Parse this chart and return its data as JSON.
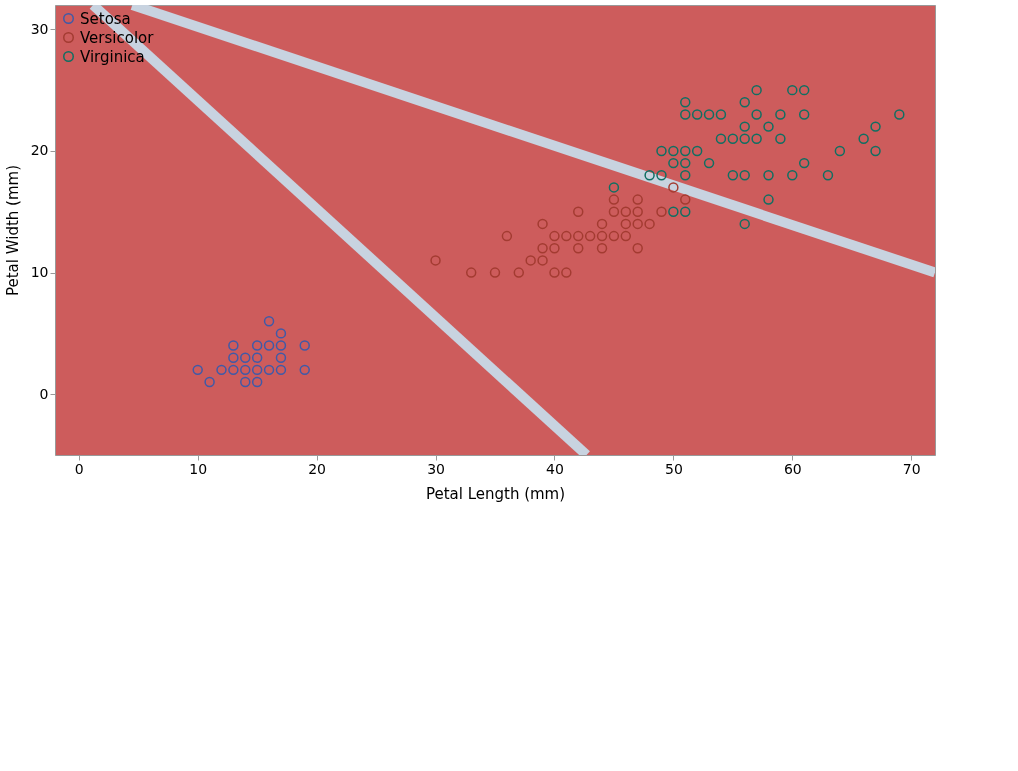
{
  "chart_data": {
    "type": "scatter",
    "xlabel": "Petal Length (mm)",
    "ylabel": "Petal Width (mm)",
    "xlim": [
      -2,
      72
    ],
    "ylim": [
      -5,
      32
    ],
    "xticks": [
      0,
      10,
      20,
      30,
      40,
      50,
      60,
      70
    ],
    "yticks": [
      0,
      10,
      20,
      30
    ],
    "grid": false,
    "legend": "top left",
    "marker": "circle",
    "series": [
      {
        "name": "Setosa",
        "color": "#3f5aa8",
        "x": [
          10,
          11,
          12,
          13,
          13,
          13,
          14,
          14,
          14,
          15,
          15,
          15,
          15,
          16,
          16,
          16,
          17,
          17,
          17,
          17,
          19,
          19
        ],
        "values": [
          2,
          1,
          2,
          2,
          3,
          4,
          1,
          2,
          3,
          1,
          2,
          3,
          4,
          2,
          4,
          6,
          2,
          3,
          4,
          5,
          2,
          4
        ]
      },
      {
        "name": "Versicolor",
        "color": "#a33b31",
        "x": [
          30,
          33,
          35,
          36,
          37,
          38,
          39,
          39,
          39,
          40,
          40,
          40,
          41,
          41,
          42,
          42,
          42,
          43,
          44,
          44,
          44,
          45,
          45,
          45,
          46,
          46,
          46,
          47,
          47,
          47,
          47,
          48,
          49,
          50,
          51
        ],
        "values": [
          11,
          10,
          10,
          13,
          10,
          11,
          11,
          12,
          14,
          10,
          12,
          13,
          10,
          13,
          12,
          13,
          15,
          13,
          12,
          13,
          14,
          13,
          15,
          16,
          13,
          14,
          15,
          12,
          14,
          15,
          16,
          14,
          15,
          17,
          16
        ]
      },
      {
        "name": "Virginica",
        "color": "#0f6f62",
        "x": [
          45,
          48,
          49,
          49,
          50,
          50,
          50,
          51,
          51,
          51,
          51,
          51,
          51,
          52,
          52,
          53,
          53,
          54,
          54,
          55,
          55,
          56,
          56,
          56,
          56,
          56,
          57,
          57,
          57,
          58,
          58,
          58,
          59,
          59,
          60,
          60,
          61,
          61,
          61,
          63,
          64,
          66,
          67,
          67,
          69
        ],
        "values": [
          17,
          18,
          18,
          20,
          15,
          19,
          20,
          15,
          18,
          19,
          20,
          23,
          24,
          20,
          23,
          19,
          23,
          21,
          23,
          18,
          21,
          14,
          18,
          21,
          22,
          24,
          21,
          23,
          25,
          16,
          18,
          22,
          21,
          23,
          18,
          25,
          19,
          23,
          25,
          18,
          20,
          21,
          20,
          22,
          23
        ]
      },
      {
        "type": "line",
        "marker": "none",
        "color": "#c8d3e0",
        "x": [
          1.2,
          42.7
        ],
        "values": [
          32,
          -5
        ]
      },
      {
        "type": "line",
        "marker": "none",
        "color": "#c8d3e0",
        "x": [
          4.5,
          72
        ],
        "values": [
          32,
          10
        ]
      }
    ]
  }
}
